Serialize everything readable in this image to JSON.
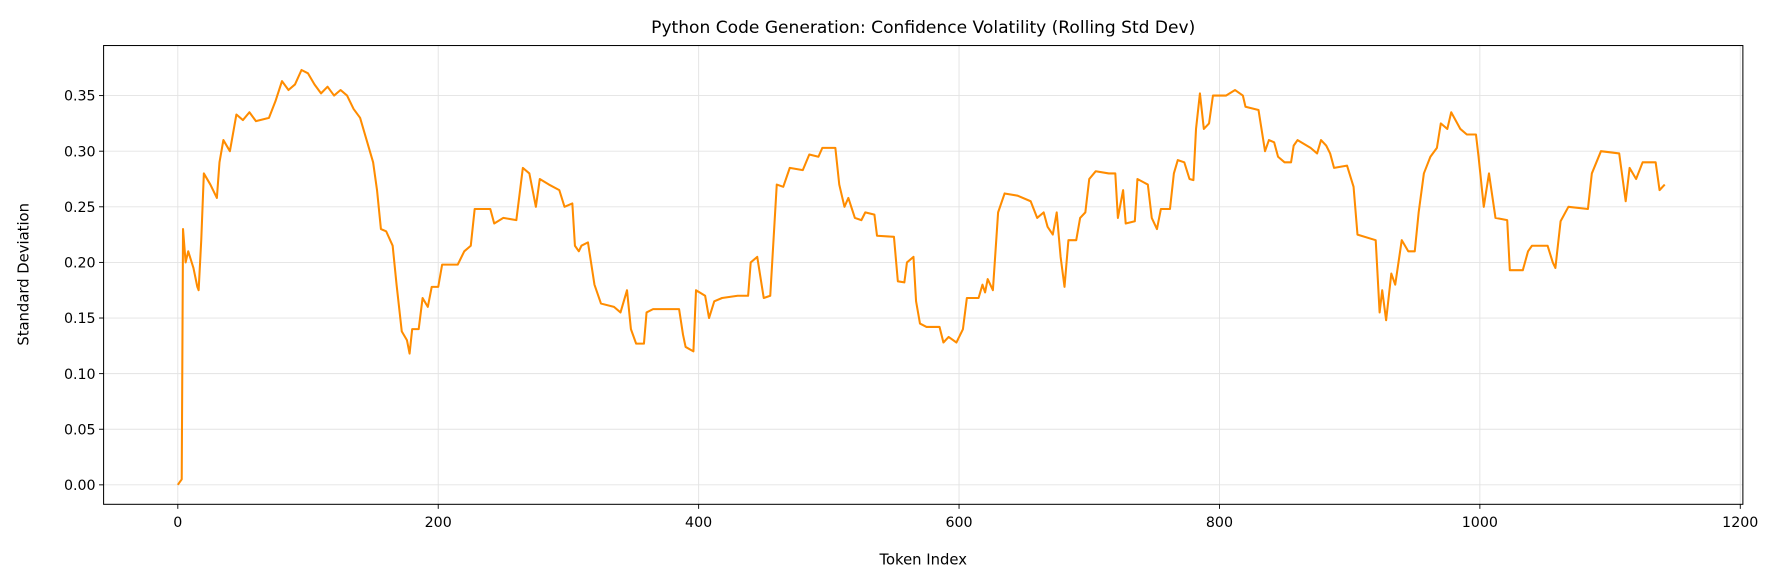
{
  "chart_data": {
    "type": "line",
    "title": "Python Code Generation: Confidence Volatility (Rolling Std Dev)",
    "xlabel": "Token Index",
    "ylabel": "Standard Deviation",
    "xlim": [
      -57,
      1202
    ],
    "ylim": [
      -0.0175,
      0.395
    ],
    "xticks": [
      0,
      200,
      400,
      600,
      800,
      1000,
      1200
    ],
    "yticks": [
      {
        "value": 0,
        "label": "0.00"
      },
      {
        "value": 0.05,
        "label": "0.05"
      },
      {
        "value": 0.1,
        "label": "0.10"
      },
      {
        "value": 0.15,
        "label": "0.15"
      },
      {
        "value": 0.2,
        "label": "0.20"
      },
      {
        "value": 0.25,
        "label": "0.25"
      },
      {
        "value": 0.3,
        "label": "0.30"
      },
      {
        "value": 0.35,
        "label": "0.35"
      }
    ],
    "grid": true,
    "series": [
      {
        "color": "#ff8c00",
        "x": [
          0,
          3,
          4,
          6,
          8,
          12,
          15,
          16,
          18,
          20,
          25,
          30,
          32,
          35,
          40,
          45,
          50,
          55,
          60,
          70,
          75,
          80,
          85,
          90,
          95,
          100,
          105,
          110,
          115,
          120,
          125,
          130,
          135,
          140,
          145,
          150,
          153,
          156,
          160,
          165,
          168,
          172,
          176,
          178,
          180,
          185,
          188,
          192,
          195,
          200,
          203,
          215,
          220,
          225,
          228,
          240,
          243,
          250,
          260,
          265,
          270,
          275,
          278,
          285,
          293,
          297,
          303,
          305,
          308,
          310,
          315,
          320,
          325,
          335,
          340,
          345,
          348,
          352,
          358,
          360,
          365,
          385,
          388,
          390,
          396,
          398,
          405,
          408,
          412,
          418,
          430,
          438,
          440,
          445,
          450,
          455,
          460,
          465,
          470,
          480,
          485,
          492,
          495,
          505,
          508,
          512,
          515,
          520,
          525,
          528,
          535,
          537,
          550,
          553,
          558,
          560,
          565,
          567,
          570,
          575,
          585,
          588,
          592,
          598,
          603,
          606,
          615,
          618,
          620,
          622,
          626,
          630,
          635,
          645,
          655,
          660,
          665,
          668,
          672,
          675,
          678,
          681,
          684,
          690,
          693,
          697,
          700,
          705,
          715,
          720,
          722,
          726,
          728,
          735,
          737,
          745,
          748,
          752,
          755,
          762,
          765,
          768,
          773,
          777,
          780,
          782,
          785,
          788,
          792,
          795,
          805,
          812,
          818,
          820,
          830,
          835,
          838,
          842,
          845,
          850,
          855,
          857,
          860,
          870,
          875,
          878,
          882,
          885,
          888,
          898,
          903,
          906,
          920,
          923,
          925,
          928,
          932,
          935,
          940,
          945,
          950,
          953,
          957,
          962,
          967,
          970,
          975,
          978,
          985,
          990,
          997,
          999,
          1003,
          1005,
          1007,
          1012,
          1021,
          1023,
          1033,
          1037,
          1040,
          1052,
          1056,
          1058,
          1062,
          1068,
          1083,
          1086,
          1093,
          1107,
          1112,
          1115,
          1120,
          1125,
          1135,
          1138,
          1142
        ],
        "values": [
          0.0,
          0.005,
          0.23,
          0.2,
          0.21,
          0.195,
          0.178,
          0.175,
          0.22,
          0.28,
          0.27,
          0.258,
          0.29,
          0.31,
          0.3,
          0.333,
          0.328,
          0.335,
          0.327,
          0.33,
          0.345,
          0.363,
          0.355,
          0.36,
          0.373,
          0.37,
          0.36,
          0.352,
          0.358,
          0.35,
          0.355,
          0.35,
          0.338,
          0.33,
          0.31,
          0.29,
          0.265,
          0.23,
          0.228,
          0.215,
          0.18,
          0.138,
          0.13,
          0.118,
          0.14,
          0.14,
          0.168,
          0.16,
          0.178,
          0.178,
          0.198,
          0.198,
          0.21,
          0.215,
          0.248,
          0.248,
          0.235,
          0.24,
          0.238,
          0.285,
          0.28,
          0.25,
          0.275,
          0.27,
          0.265,
          0.25,
          0.253,
          0.215,
          0.21,
          0.215,
          0.218,
          0.18,
          0.163,
          0.16,
          0.155,
          0.175,
          0.14,
          0.127,
          0.127,
          0.155,
          0.158,
          0.158,
          0.135,
          0.124,
          0.12,
          0.175,
          0.17,
          0.15,
          0.165,
          0.168,
          0.17,
          0.17,
          0.2,
          0.205,
          0.168,
          0.17,
          0.27,
          0.268,
          0.285,
          0.283,
          0.297,
          0.295,
          0.303,
          0.303,
          0.27,
          0.25,
          0.258,
          0.24,
          0.238,
          0.245,
          0.243,
          0.224,
          0.223,
          0.183,
          0.182,
          0.2,
          0.205,
          0.165,
          0.145,
          0.142,
          0.142,
          0.128,
          0.133,
          0.128,
          0.14,
          0.168,
          0.168,
          0.18,
          0.173,
          0.185,
          0.175,
          0.245,
          0.262,
          0.26,
          0.255,
          0.24,
          0.245,
          0.232,
          0.225,
          0.245,
          0.205,
          0.178,
          0.22,
          0.22,
          0.24,
          0.245,
          0.275,
          0.282,
          0.28,
          0.28,
          0.24,
          0.265,
          0.235,
          0.237,
          0.275,
          0.27,
          0.24,
          0.23,
          0.248,
          0.248,
          0.28,
          0.292,
          0.29,
          0.275,
          0.274,
          0.32,
          0.352,
          0.32,
          0.325,
          0.35,
          0.35,
          0.355,
          0.35,
          0.34,
          0.337,
          0.3,
          0.31,
          0.308,
          0.295,
          0.29,
          0.29,
          0.305,
          0.31,
          0.303,
          0.298,
          0.31,
          0.305,
          0.298,
          0.285,
          0.287,
          0.268,
          0.225,
          0.22,
          0.155,
          0.175,
          0.148,
          0.19,
          0.18,
          0.22,
          0.21,
          0.21,
          0.245,
          0.28,
          0.295,
          0.303,
          0.325,
          0.32,
          0.335,
          0.32,
          0.315,
          0.315,
          0.295,
          0.25,
          0.265,
          0.28,
          0.24,
          0.238,
          0.193,
          0.193,
          0.21,
          0.215,
          0.215,
          0.2,
          0.195,
          0.237,
          0.25,
          0.248,
          0.28,
          0.3,
          0.298,
          0.255,
          0.285,
          0.275,
          0.29,
          0.29,
          0.265,
          0.27
        ]
      }
    ]
  }
}
